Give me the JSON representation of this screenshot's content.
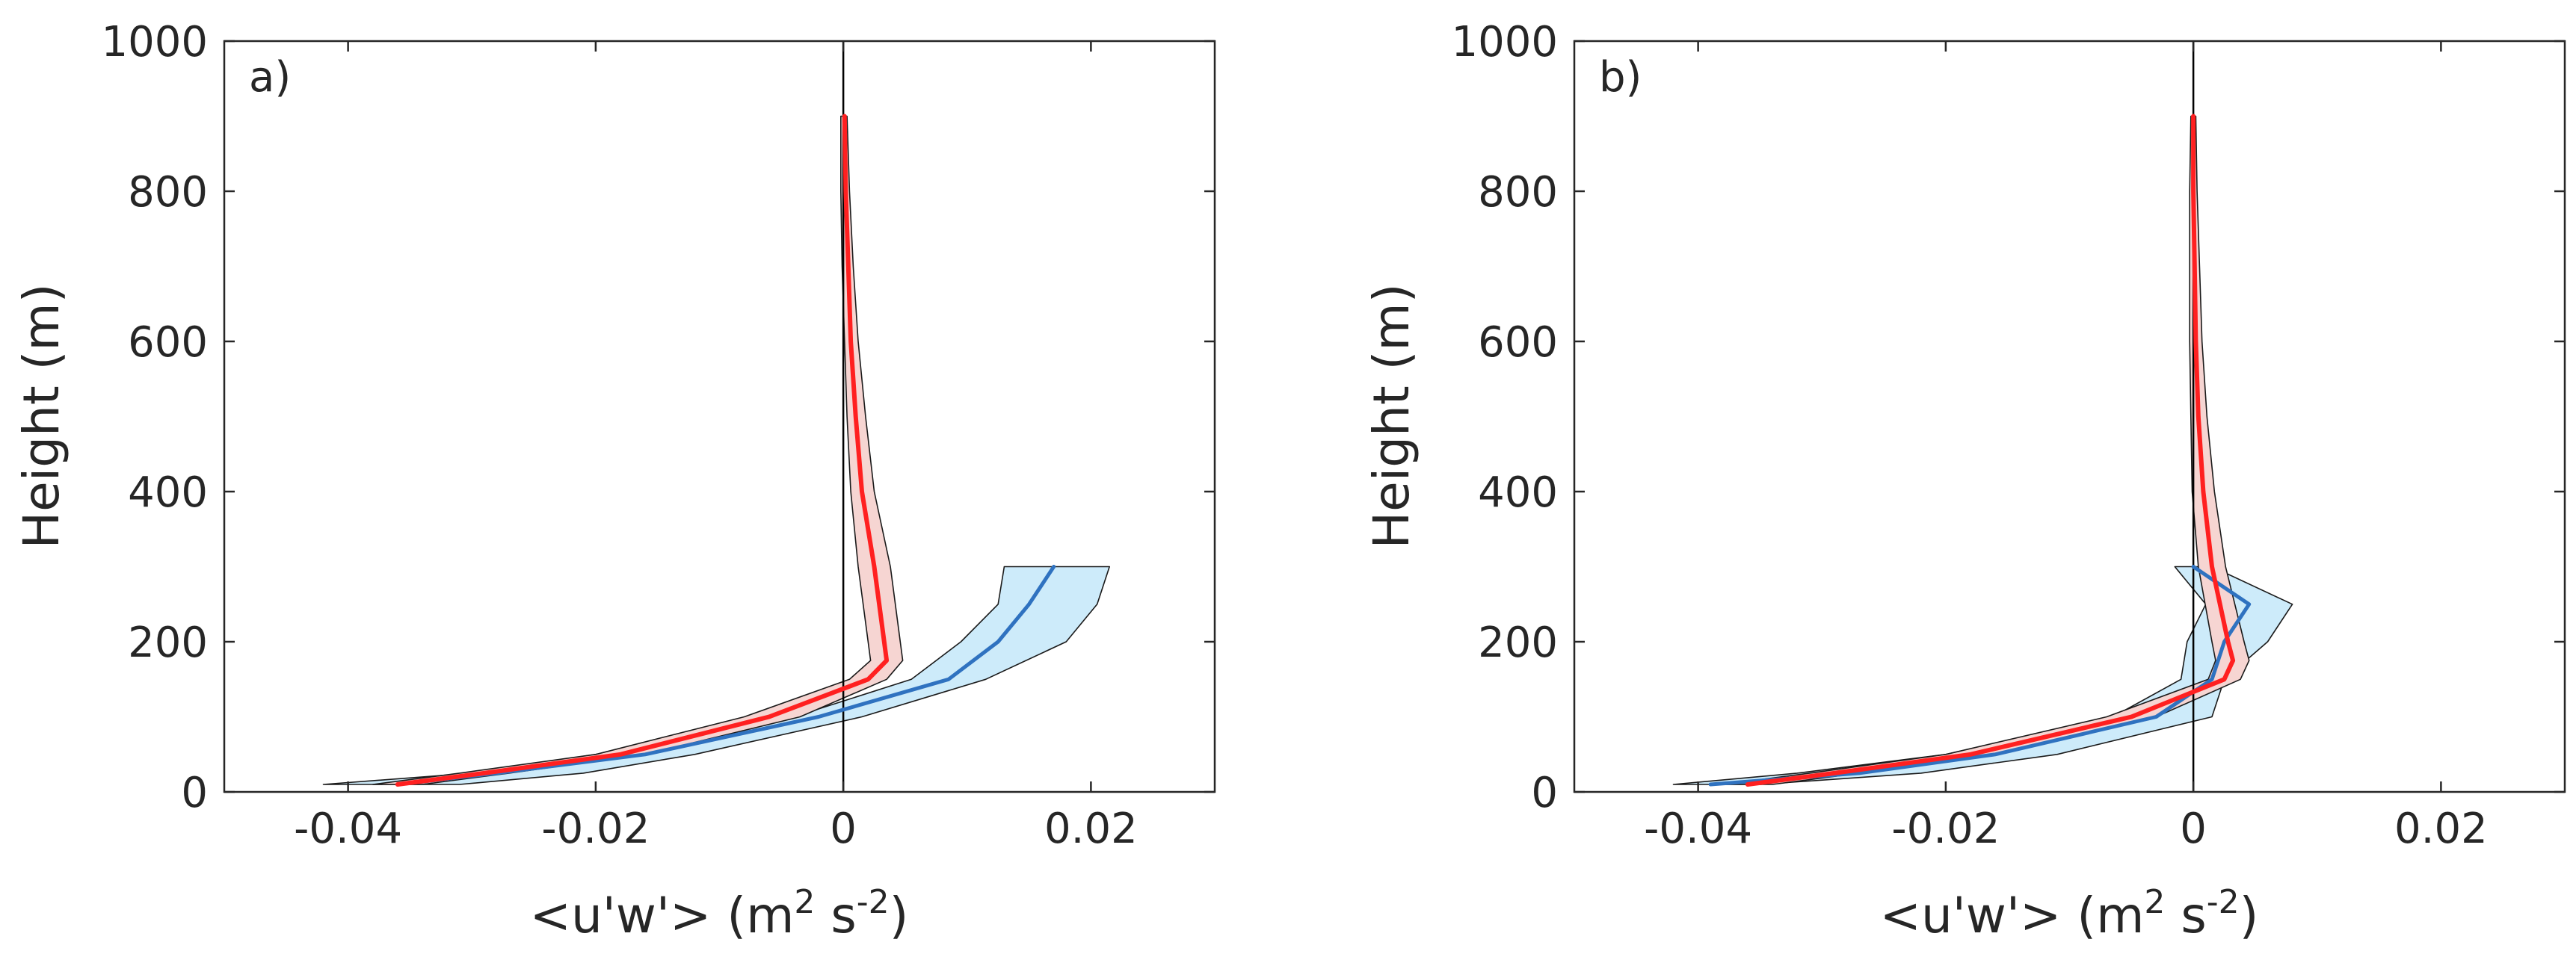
{
  "colors": {
    "ensemble_line": "#2f72c0",
    "ensemble_band": "#cdebfa",
    "model_line": "#ff2020",
    "model_band": "#f6d5d2",
    "axes": "#262626",
    "zero_line": "#000000"
  },
  "chart_data": [
    {
      "type": "line",
      "panel_label": "a)",
      "ylabel": "Height (m)",
      "xlabel": "<u'w'> (m",
      "xlabel_sup1": "2",
      "xlabel_mid": " s",
      "xlabel_sup2": "-2",
      "xlabel_end": ")",
      "xlim": [
        -0.05,
        0.03
      ],
      "ylim": [
        0,
        1000
      ],
      "xticks": [
        -0.04,
        -0.02,
        0,
        0.02
      ],
      "xtick_labels": [
        "-0.04",
        "-0.02",
        "0",
        "0.02"
      ],
      "yticks": [
        0,
        200,
        400,
        600,
        800,
        1000
      ],
      "ytick_labels": [
        "0",
        "200",
        "400",
        "600",
        "800",
        "1000"
      ],
      "zero_line": 0,
      "series": [
        {
          "name": "blue",
          "z": [
            10,
            25,
            50,
            100,
            150,
            200,
            250,
            300
          ],
          "mean": [
            -0.036,
            -0.028,
            -0.016,
            -0.002,
            0.0085,
            0.0125,
            0.015,
            0.017
          ],
          "lower": [
            -0.042,
            -0.03,
            -0.02,
            -0.004,
            0.0055,
            0.0095,
            0.0125,
            0.013
          ],
          "upper": [
            -0.031,
            -0.021,
            -0.012,
            0.0015,
            0.0115,
            0.018,
            0.0205,
            0.0215
          ]
        },
        {
          "name": "red",
          "z": [
            10,
            25,
            50,
            100,
            150,
            175,
            200,
            300,
            400,
            500,
            600,
            700,
            800,
            900
          ],
          "mean": [
            -0.036,
            -0.029,
            -0.018,
            -0.006,
            0.002,
            0.0035,
            0.0033,
            0.0025,
            0.0015,
            0.001,
            0.0006,
            0.0004,
            0.0002,
            0.0001
          ],
          "lower": [
            -0.038,
            -0.031,
            -0.02,
            -0.008,
            0.0005,
            0.0022,
            0.002,
            0.0012,
            0.0006,
            0.0003,
            0.0001,
            -0.0001,
            -0.0002,
            -0.0002
          ],
          "upper": [
            -0.034,
            -0.027,
            -0.016,
            -0.0035,
            0.0035,
            0.0048,
            0.0046,
            0.0038,
            0.0025,
            0.0018,
            0.0012,
            0.0008,
            0.0005,
            0.0003
          ]
        }
      ]
    },
    {
      "type": "line",
      "panel_label": "b)",
      "ylabel": "Height (m)",
      "xlabel": "<u'w'> (m",
      "xlabel_sup1": "2",
      "xlabel_mid": " s",
      "xlabel_sup2": "-2",
      "xlabel_end": ")",
      "xlim": [
        -0.05,
        0.03
      ],
      "ylim": [
        0,
        1000
      ],
      "xticks": [
        -0.04,
        -0.02,
        0,
        0.02
      ],
      "xtick_labels": [
        "-0.04",
        "-0.02",
        "0",
        "0.02"
      ],
      "yticks": [
        0,
        200,
        400,
        600,
        800,
        1000
      ],
      "ytick_labels": [
        "0",
        "200",
        "400",
        "600",
        "800",
        "1000"
      ],
      "zero_line": 0,
      "series": [
        {
          "name": "blue",
          "z": [
            10,
            25,
            50,
            100,
            150,
            200,
            250,
            300
          ],
          "mean": [
            -0.039,
            -0.027,
            -0.016,
            -0.003,
            0.0015,
            0.0025,
            0.0045,
            0.0
          ],
          "lower": [
            -0.042,
            -0.032,
            -0.02,
            -0.0065,
            -0.001,
            -0.0005,
            0.001,
            -0.0015
          ],
          "upper": [
            -0.035,
            -0.022,
            -0.011,
            0.0015,
            0.0025,
            0.006,
            0.008,
            0.0015
          ]
        },
        {
          "name": "red",
          "z": [
            10,
            25,
            50,
            100,
            150,
            175,
            200,
            300,
            400,
            500,
            600,
            700,
            800,
            900
          ],
          "mean": [
            -0.036,
            -0.029,
            -0.018,
            -0.005,
            0.0025,
            0.0032,
            0.0028,
            0.0015,
            0.0008,
            0.0004,
            0.0002,
            0.0001,
            0.0,
            0.0
          ],
          "lower": [
            -0.038,
            -0.031,
            -0.02,
            -0.007,
            0.0012,
            0.0018,
            0.0015,
            0.0004,
            -0.0001,
            -0.0002,
            -0.0003,
            -0.0003,
            -0.0003,
            -0.0002
          ],
          "upper": [
            -0.034,
            -0.027,
            -0.016,
            -0.003,
            0.0038,
            0.0045,
            0.0041,
            0.0026,
            0.0017,
            0.0011,
            0.0007,
            0.0005,
            0.0003,
            0.0002
          ]
        }
      ]
    }
  ]
}
